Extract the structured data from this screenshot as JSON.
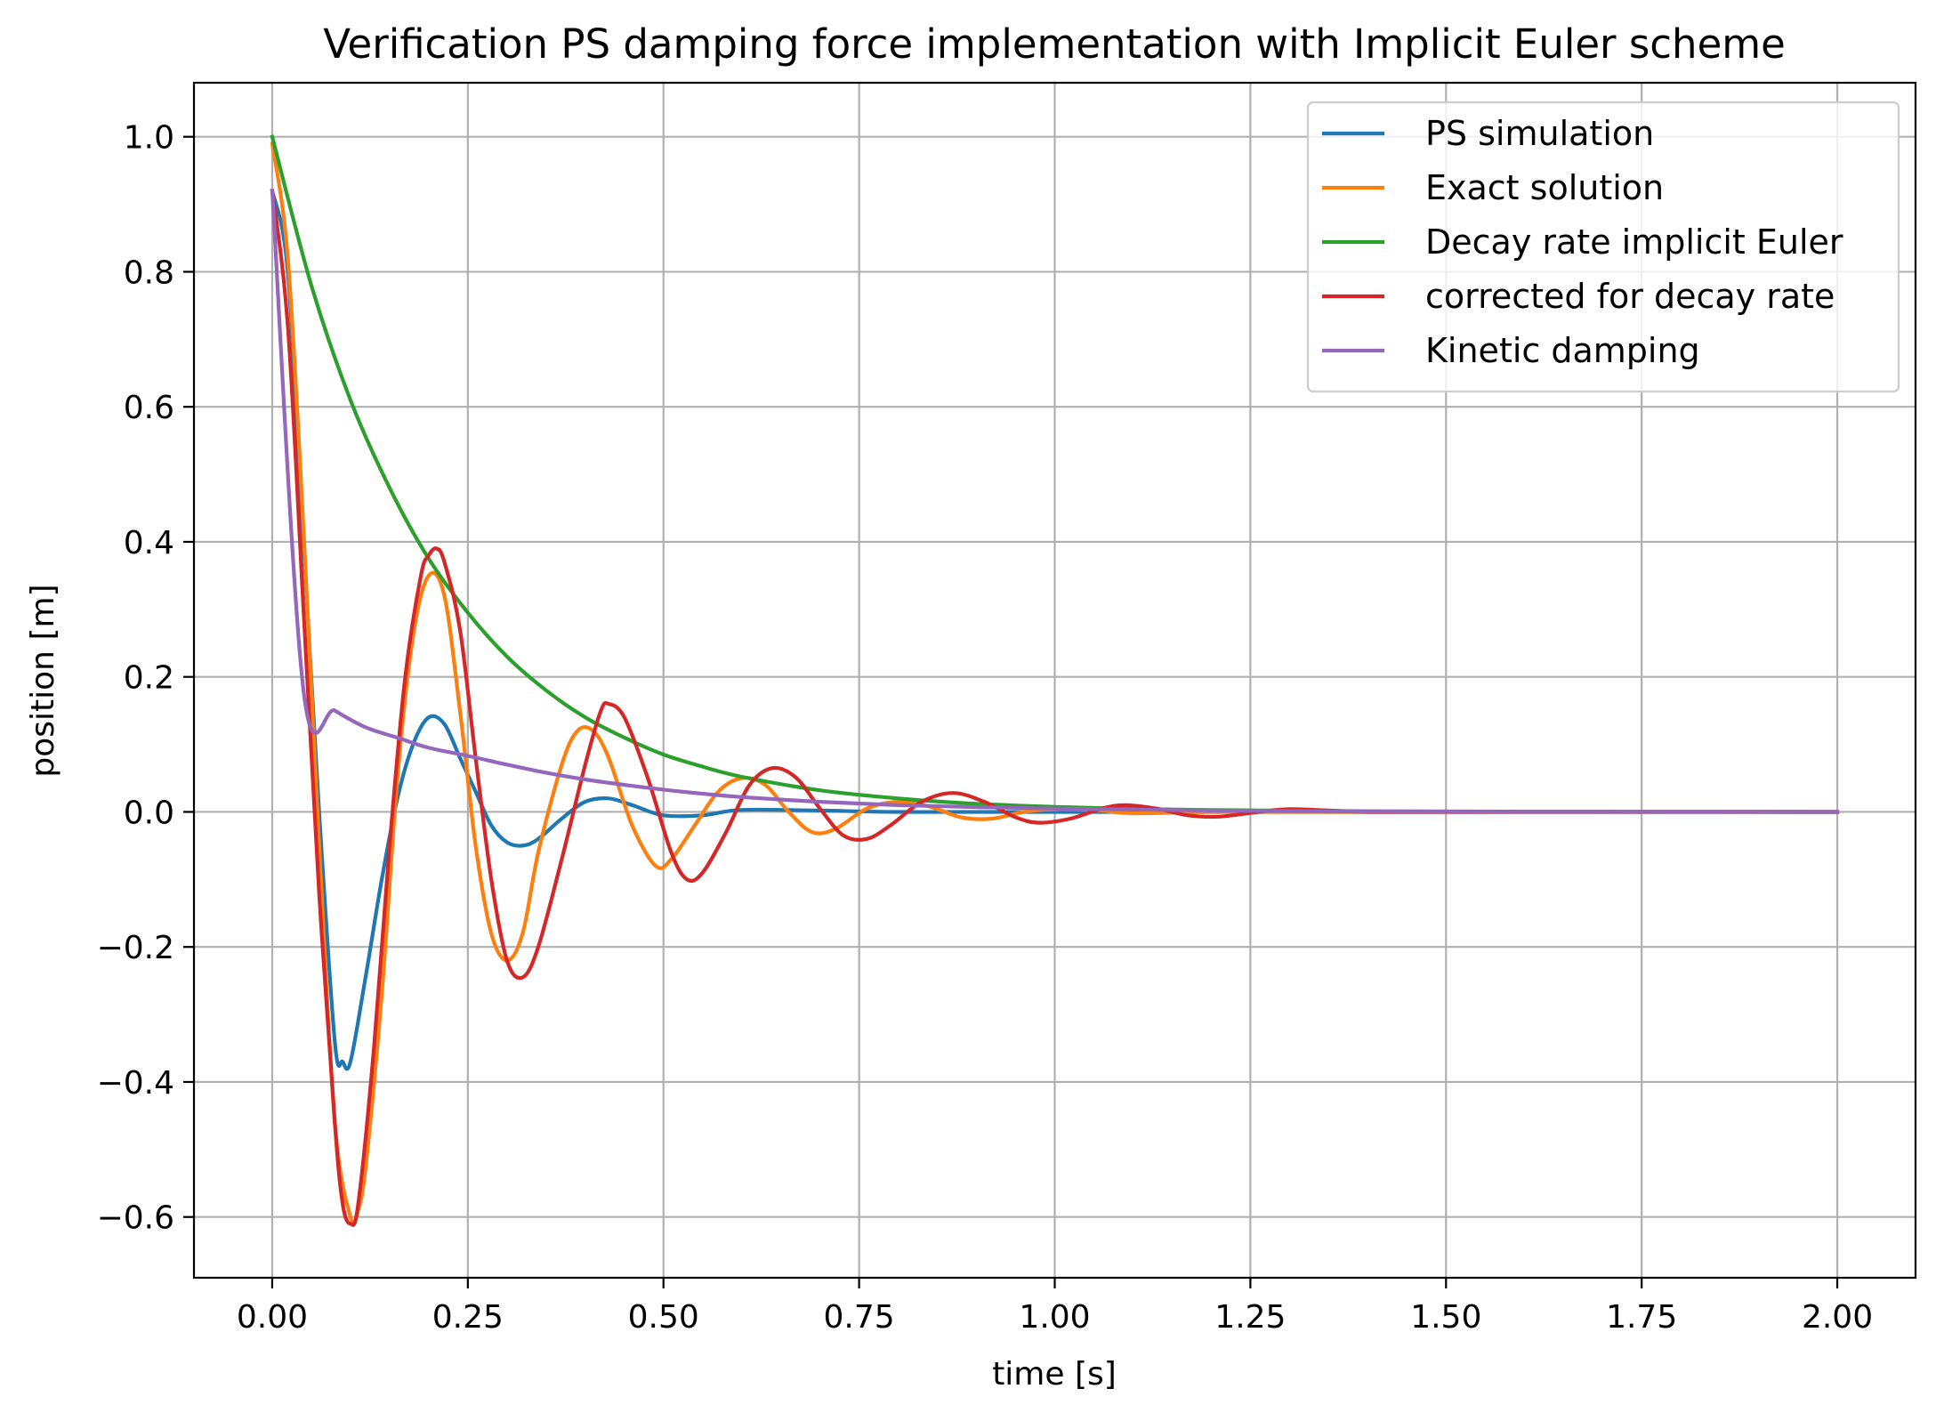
{
  "chart_data": {
    "type": "line",
    "title": "Verification PS damping force implementation with Implicit Euler scheme",
    "xlabel": "time [s]",
    "ylabel": "position [m]",
    "xlim": [
      -0.1,
      2.1
    ],
    "ylim": [
      -0.69,
      1.08
    ],
    "xticks": [
      0.0,
      0.25,
      0.5,
      0.75,
      1.0,
      1.25,
      1.5,
      1.75,
      2.0
    ],
    "xtick_labels": [
      "0.00",
      "0.25",
      "0.50",
      "0.75",
      "1.00",
      "1.25",
      "1.50",
      "1.75",
      "2.00"
    ],
    "yticks": [
      -0.6,
      -0.4,
      -0.2,
      0.0,
      0.2,
      0.4,
      0.6,
      0.8,
      1.0
    ],
    "ytick_labels": [
      "−0.6",
      "−0.4",
      "−0.2",
      "0.0",
      "0.2",
      "0.4",
      "0.6",
      "0.8",
      "1.0"
    ],
    "grid": true,
    "legend_position": "top-right",
    "series": [
      {
        "name": "PS simulation",
        "color": "#1f77b4",
        "points": [
          [
            0.0,
            0.92
          ],
          [
            0.02,
            0.8
          ],
          [
            0.04,
            0.4
          ],
          [
            0.06,
            0.0
          ],
          [
            0.08,
            -0.34
          ],
          [
            0.09,
            -0.37
          ],
          [
            0.1,
            -0.37
          ],
          [
            0.12,
            -0.24
          ],
          [
            0.14,
            -0.1
          ],
          [
            0.16,
            0.02
          ],
          [
            0.18,
            0.1
          ],
          [
            0.2,
            0.14
          ],
          [
            0.22,
            0.13
          ],
          [
            0.24,
            0.08
          ],
          [
            0.26,
            0.03
          ],
          [
            0.28,
            -0.02
          ],
          [
            0.3,
            -0.045
          ],
          [
            0.32,
            -0.05
          ],
          [
            0.34,
            -0.04
          ],
          [
            0.37,
            -0.01
          ],
          [
            0.4,
            0.015
          ],
          [
            0.43,
            0.02
          ],
          [
            0.46,
            0.01
          ],
          [
            0.5,
            -0.005
          ],
          [
            0.55,
            -0.005
          ],
          [
            0.6,
            0.003
          ],
          [
            0.7,
            0.002
          ],
          [
            0.8,
            0.0
          ],
          [
            1.0,
            0.0
          ],
          [
            1.5,
            0.0
          ],
          [
            2.0,
            0.0
          ]
        ]
      },
      {
        "name": "Exact solution",
        "color": "#ff7f0e",
        "points": [
          [
            0.0,
            0.99
          ],
          [
            0.02,
            0.82
          ],
          [
            0.04,
            0.42
          ],
          [
            0.06,
            -0.05
          ],
          [
            0.08,
            -0.46
          ],
          [
            0.1,
            -0.6
          ],
          [
            0.11,
            -0.59
          ],
          [
            0.12,
            -0.52
          ],
          [
            0.14,
            -0.27
          ],
          [
            0.16,
            0.05
          ],
          [
            0.18,
            0.26
          ],
          [
            0.2,
            0.35
          ],
          [
            0.22,
            0.32
          ],
          [
            0.24,
            0.15
          ],
          [
            0.26,
            -0.05
          ],
          [
            0.28,
            -0.18
          ],
          [
            0.3,
            -0.22
          ],
          [
            0.32,
            -0.18
          ],
          [
            0.34,
            -0.06
          ],
          [
            0.37,
            0.07
          ],
          [
            0.39,
            0.12
          ],
          [
            0.41,
            0.12
          ],
          [
            0.43,
            0.08
          ],
          [
            0.46,
            -0.02
          ],
          [
            0.49,
            -0.08
          ],
          [
            0.51,
            -0.07
          ],
          [
            0.54,
            -0.02
          ],
          [
            0.57,
            0.03
          ],
          [
            0.6,
            0.05
          ],
          [
            0.63,
            0.04
          ],
          [
            0.66,
            0.0
          ],
          [
            0.69,
            -0.03
          ],
          [
            0.72,
            -0.025
          ],
          [
            0.76,
            0.005
          ],
          [
            0.8,
            0.015
          ],
          [
            0.84,
            0.008
          ],
          [
            0.88,
            -0.008
          ],
          [
            0.92,
            -0.01
          ],
          [
            0.96,
            0.0
          ],
          [
            1.0,
            0.004
          ],
          [
            1.05,
            0.003
          ],
          [
            1.1,
            -0.002
          ],
          [
            1.2,
            0.0
          ],
          [
            1.3,
            0.0
          ],
          [
            1.5,
            0.0
          ],
          [
            2.0,
            0.0
          ]
        ]
      },
      {
        "name": "Decay rate implicit Euler",
        "color": "#2ca02c",
        "points": [
          [
            0.0,
            1.0
          ],
          [
            0.05,
            0.78
          ],
          [
            0.1,
            0.61
          ],
          [
            0.15,
            0.48
          ],
          [
            0.2,
            0.375
          ],
          [
            0.25,
            0.295
          ],
          [
            0.3,
            0.23
          ],
          [
            0.35,
            0.18
          ],
          [
            0.4,
            0.14
          ],
          [
            0.45,
            0.11
          ],
          [
            0.5,
            0.085
          ],
          [
            0.55,
            0.067
          ],
          [
            0.6,
            0.052
          ],
          [
            0.7,
            0.032
          ],
          [
            0.8,
            0.02
          ],
          [
            0.9,
            0.012
          ],
          [
            1.0,
            0.0075
          ],
          [
            1.1,
            0.0046
          ],
          [
            1.2,
            0.0028
          ],
          [
            1.4,
            0.001
          ],
          [
            1.6,
            0.0004
          ],
          [
            1.8,
            0.0001
          ],
          [
            2.0,
            0.0
          ]
        ]
      },
      {
        "name": "corrected for decay rate",
        "color": "#d62728",
        "points": [
          [
            0.0,
            0.92
          ],
          [
            0.02,
            0.72
          ],
          [
            0.04,
            0.3
          ],
          [
            0.06,
            -0.12
          ],
          [
            0.08,
            -0.46
          ],
          [
            0.09,
            -0.58
          ],
          [
            0.1,
            -0.61
          ],
          [
            0.11,
            -0.58
          ],
          [
            0.13,
            -0.35
          ],
          [
            0.15,
            -0.05
          ],
          [
            0.17,
            0.2
          ],
          [
            0.19,
            0.35
          ],
          [
            0.2,
            0.38
          ],
          [
            0.21,
            0.39
          ],
          [
            0.22,
            0.37
          ],
          [
            0.24,
            0.27
          ],
          [
            0.26,
            0.08
          ],
          [
            0.28,
            -0.1
          ],
          [
            0.3,
            -0.22
          ],
          [
            0.32,
            -0.245
          ],
          [
            0.34,
            -0.2
          ],
          [
            0.37,
            -0.07
          ],
          [
            0.4,
            0.07
          ],
          [
            0.42,
            0.15
          ],
          [
            0.43,
            0.16
          ],
          [
            0.45,
            0.14
          ],
          [
            0.48,
            0.05
          ],
          [
            0.51,
            -0.06
          ],
          [
            0.53,
            -0.1
          ],
          [
            0.55,
            -0.09
          ],
          [
            0.58,
            -0.03
          ],
          [
            0.61,
            0.04
          ],
          [
            0.64,
            0.065
          ],
          [
            0.67,
            0.05
          ],
          [
            0.7,
            0.005
          ],
          [
            0.73,
            -0.035
          ],
          [
            0.76,
            -0.04
          ],
          [
            0.79,
            -0.02
          ],
          [
            0.83,
            0.015
          ],
          [
            0.87,
            0.028
          ],
          [
            0.91,
            0.015
          ],
          [
            0.95,
            -0.008
          ],
          [
            0.98,
            -0.016
          ],
          [
            1.02,
            -0.01
          ],
          [
            1.06,
            0.005
          ],
          [
            1.09,
            0.01
          ],
          [
            1.13,
            0.005
          ],
          [
            1.17,
            -0.005
          ],
          [
            1.21,
            -0.007
          ],
          [
            1.26,
            0.0
          ],
          [
            1.3,
            0.004
          ],
          [
            1.35,
            0.002
          ],
          [
            1.4,
            0.0
          ],
          [
            1.5,
            0.0
          ],
          [
            2.0,
            0.0
          ]
        ]
      },
      {
        "name": "Kinetic damping",
        "color": "#9467bd",
        "points": [
          [
            0.0,
            0.92
          ],
          [
            0.04,
            0.18
          ],
          [
            0.08,
            0.15
          ],
          [
            0.12,
            0.125
          ],
          [
            0.16,
            0.11
          ],
          [
            0.2,
            0.095
          ],
          [
            0.25,
            0.083
          ],
          [
            0.3,
            0.07
          ],
          [
            0.35,
            0.058
          ],
          [
            0.4,
            0.048
          ],
          [
            0.45,
            0.04
          ],
          [
            0.5,
            0.033
          ],
          [
            0.55,
            0.027
          ],
          [
            0.6,
            0.022
          ],
          [
            0.7,
            0.015
          ],
          [
            0.8,
            0.01
          ],
          [
            0.9,
            0.007
          ],
          [
            1.0,
            0.005
          ],
          [
            1.1,
            0.0035
          ],
          [
            1.2,
            0.002
          ],
          [
            1.3,
            0.0012
          ],
          [
            1.4,
            0.0006
          ],
          [
            1.6,
            0.0002
          ],
          [
            2.0,
            0.0
          ]
        ]
      }
    ]
  }
}
